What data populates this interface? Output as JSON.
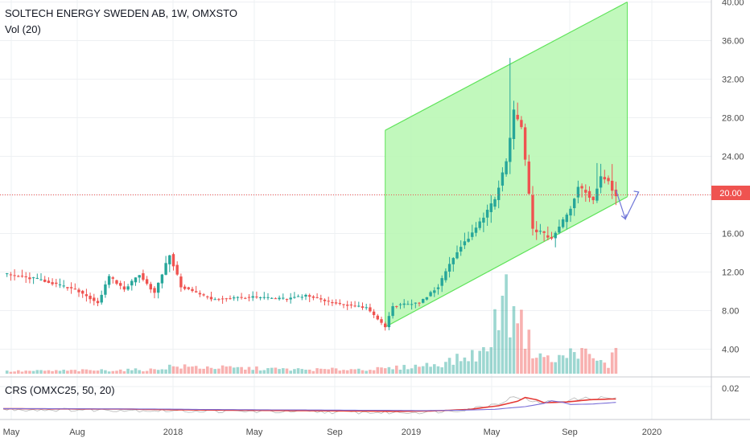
{
  "header": {
    "title": "SOLTECH ENERGY SWEDEN AB, 1W, OMXSTO",
    "vol_label": "Vol (20)"
  },
  "crs_panel": {
    "label": "CRS (OMXC25, 50, 20)",
    "tick": "0.02"
  },
  "last_price_label": "20.00",
  "colors": {
    "up": "#26a69a",
    "down": "#ef5350",
    "channel_fill": "#b6f7b0",
    "channel_edge": "#5fe35a",
    "price_line": "#ef5350",
    "crs_red": "#e53935",
    "crs_blue": "#7b6fd8",
    "crs_gray": "#b5b5b5",
    "arrow": "#7077d8"
  },
  "chart_data": {
    "type": "candlestick",
    "title": "SOLTECH ENERGY SWEDEN AB, 1W, OMXSTO",
    "price_axis": {
      "ticks": [
        "4.00",
        "8.00",
        "12.00",
        "16.00",
        "20.00",
        "24.00",
        "28.00",
        "32.00",
        "36.00",
        "40.00"
      ],
      "range": [
        1.5,
        40
      ]
    },
    "time_axis": {
      "ticks": [
        "May",
        "Aug",
        "2018",
        "May",
        "Sep",
        "2019",
        "May",
        "Sep",
        "2020"
      ]
    },
    "series": [
      {
        "name": "Price (weekly)",
        "keypoints": [
          [
            0,
            11.8
          ],
          [
            10,
            11.2
          ],
          [
            20,
            10.0
          ],
          [
            25,
            8.8
          ],
          [
            28,
            11.5
          ],
          [
            32,
            10.2
          ],
          [
            36,
            11.8
          ],
          [
            40,
            9.8
          ],
          [
            44,
            13.8
          ],
          [
            47,
            10.5
          ],
          [
            55,
            9.2
          ],
          [
            65,
            9.4
          ],
          [
            75,
            9.2
          ],
          [
            80,
            9.6
          ],
          [
            85,
            9.0
          ],
          [
            92,
            8.5
          ],
          [
            96,
            8.3
          ],
          [
            101,
            6.3
          ],
          [
            103,
            8.5
          ],
          [
            110,
            8.8
          ],
          [
            115,
            10.5
          ],
          [
            120,
            14.2
          ],
          [
            125,
            16.5
          ],
          [
            130,
            19.5
          ],
          [
            133,
            23.5
          ],
          [
            135,
            28.5
          ],
          [
            137,
            27.0
          ],
          [
            139,
            20.0
          ],
          [
            140,
            16.5
          ],
          [
            145,
            15.5
          ],
          [
            150,
            18.5
          ],
          [
            152,
            21.0
          ],
          [
            156,
            19.5
          ],
          [
            158,
            22.0
          ],
          [
            160,
            21.5
          ],
          [
            162,
            19.8
          ]
        ],
        "spikes": [
          [
            134,
            34.2
          ],
          [
            157,
            23.3
          ],
          [
            161,
            23.2
          ]
        ]
      },
      {
        "name": "Volume",
        "keypoints": [
          [
            0,
            0.3
          ],
          [
            40,
            0.5
          ],
          [
            44,
            0.9
          ],
          [
            80,
            0.5
          ],
          [
            101,
            0.6
          ],
          [
            115,
            1.2
          ],
          [
            122,
            2.0
          ],
          [
            128,
            2.8
          ],
          [
            131,
            8.0
          ],
          [
            132,
            10.9
          ],
          [
            134,
            7.0
          ],
          [
            135,
            10.6
          ],
          [
            137,
            6.0
          ],
          [
            140,
            3.0
          ],
          [
            145,
            1.5
          ],
          [
            150,
            2.5
          ],
          [
            152,
            3.0
          ],
          [
            156,
            1.8
          ],
          [
            160,
            1.0
          ],
          [
            162,
            3.2
          ]
        ]
      },
      {
        "name": "CRS",
        "keypoints": [
          [
            0,
            -0.006
          ],
          [
            30,
            -0.0065
          ],
          [
            45,
            -0.0075
          ],
          [
            60,
            -0.008
          ],
          [
            75,
            -0.0085
          ],
          [
            90,
            -0.009
          ],
          [
            101,
            -0.0095
          ],
          [
            110,
            -0.009
          ],
          [
            120,
            -0.007
          ],
          [
            128,
            -0.002
          ],
          [
            133,
            0.004
          ],
          [
            135,
            0.009
          ],
          [
            138,
            0.006
          ],
          [
            140,
            0.002
          ],
          [
            146,
            0.003
          ],
          [
            152,
            0.006
          ],
          [
            158,
            0.007
          ],
          [
            162,
            0.007
          ]
        ]
      }
    ],
    "last_price": 20.0,
    "channel": {
      "lower_start": [
        101,
        6.3
      ],
      "lower_end": [
        165,
        19.8
      ],
      "upper_start": [
        101,
        26.7
      ],
      "upper_end": [
        165,
        40.0
      ]
    }
  }
}
